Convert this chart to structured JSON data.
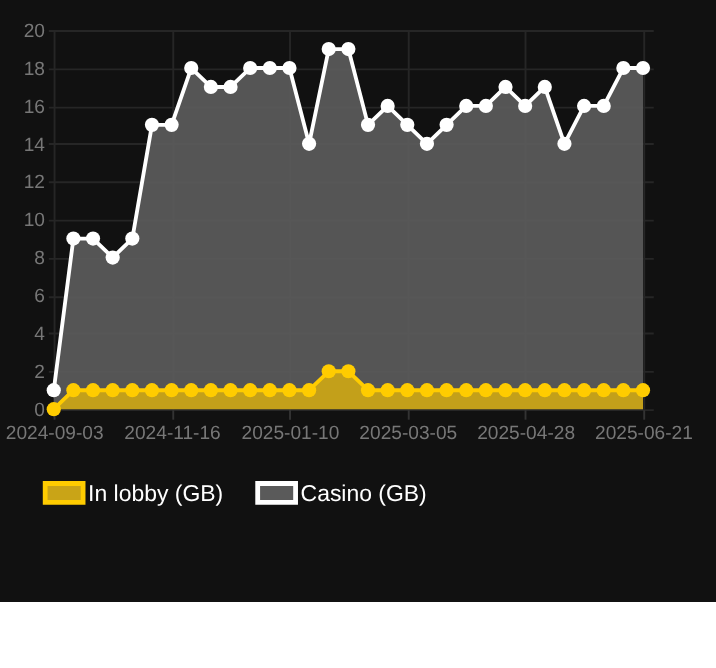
{
  "chart_data": {
    "type": "area",
    "categories": [
      "2024-09-03",
      null,
      null,
      null,
      null,
      null,
      "2024-11-16",
      null,
      null,
      null,
      null,
      null,
      "2025-01-10",
      null,
      null,
      null,
      null,
      null,
      "2025-03-05",
      null,
      null,
      null,
      null,
      null,
      "2025-04-28",
      null,
      null,
      null,
      null,
      null,
      "2025-06-21"
    ],
    "series": [
      {
        "name": "In lobby (GB)",
        "color": "#ffcc00",
        "values": [
          0,
          1,
          1,
          1,
          1,
          1,
          1,
          1,
          1,
          1,
          1,
          1,
          1,
          1,
          2,
          2,
          1,
          1,
          1,
          1,
          1,
          1,
          1,
          1,
          1,
          1,
          1,
          1,
          1,
          1,
          1
        ]
      },
      {
        "name": "Casino (GB)",
        "color": "#ffffff",
        "values": [
          1,
          9,
          9,
          8,
          9,
          15,
          15,
          18,
          17,
          17,
          18,
          18,
          18,
          14,
          19,
          19,
          15,
          16,
          15,
          14,
          15,
          16,
          16,
          17,
          16,
          17,
          14,
          16,
          16,
          18,
          18
        ]
      }
    ],
    "ylim": [
      0,
      20
    ],
    "yticks": [
      0,
      2,
      4,
      6,
      8,
      10,
      12,
      14,
      16,
      18,
      20
    ],
    "grid": true,
    "legend": "bottom",
    "marker": "circle",
    "line_style": "solid"
  }
}
